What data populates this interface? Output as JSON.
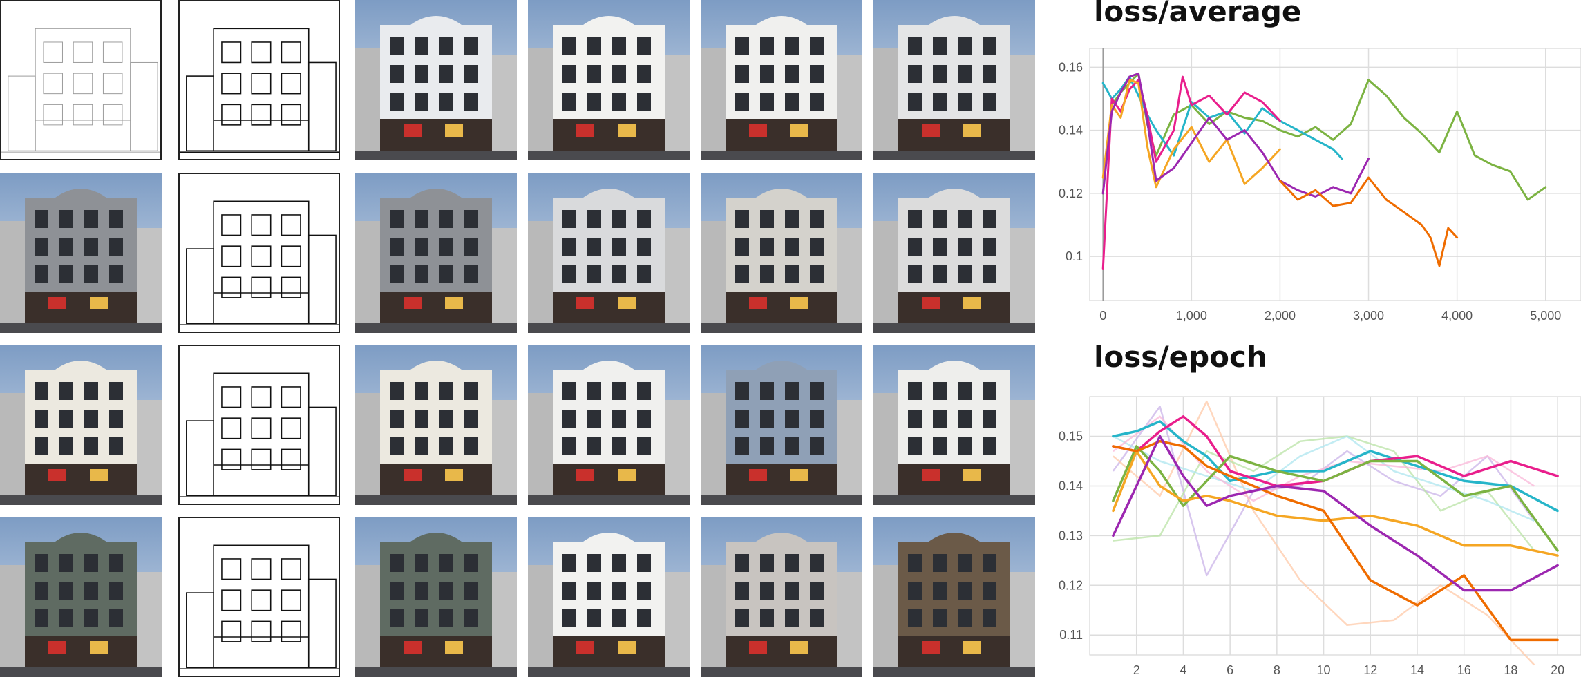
{
  "grid": {
    "rows": [
      {
        "sketch_style": "architectural"
      },
      {
        "sketch_style": "freehand"
      },
      {
        "sketch_style": "freehand"
      },
      {
        "sketch_style": "freehand"
      }
    ],
    "photo_palettes": [
      [
        "#e9ebee",
        "#f2f2f0",
        "#f0f0ee",
        "#e4e5e6"
      ],
      [
        "#8e9196",
        "#d9dadc",
        "#d4d2cc",
        "#dcdcdc"
      ],
      [
        "#ece9e0",
        "#f0f0ee",
        "#8fa0b6",
        "#eeeeec"
      ],
      [
        "#5f6b62",
        "#f2f2f0",
        "#c8c4c0",
        "#6b5a48"
      ]
    ]
  },
  "chart_data": [
    {
      "type": "line",
      "title": "loss/average",
      "xlim": [
        -150,
        5400
      ],
      "ylim": [
        0.086,
        0.166
      ],
      "x_ticks": [
        0,
        1000,
        2000,
        3000,
        4000,
        5000
      ],
      "x_tick_labels": [
        "0",
        "1,000",
        "2,000",
        "3,000",
        "4,000",
        "5,000"
      ],
      "y_ticks": [
        0.1,
        0.12,
        0.14,
        0.16
      ],
      "y_tick_labels": [
        "0.1",
        "0.12",
        "0.14",
        "0.16"
      ],
      "grid": true,
      "series": [
        {
          "color": "#7cb342",
          "x": [
            0,
            100,
            200,
            300,
            400,
            500,
            600,
            800,
            1000,
            1200,
            1400,
            1600,
            1800,
            2000,
            2200,
            2400,
            2600,
            2800,
            3000,
            3200,
            3400,
            3600,
            3800,
            4000,
            4200,
            4400,
            4600,
            4800,
            5000
          ],
          "y": [
            0.12,
            0.148,
            0.152,
            0.155,
            0.158,
            0.142,
            0.132,
            0.145,
            0.148,
            0.142,
            0.146,
            0.144,
            0.143,
            0.14,
            0.138,
            0.141,
            0.137,
            0.142,
            0.156,
            0.151,
            0.144,
            0.139,
            0.133,
            0.146,
            0.132,
            0.129,
            0.127,
            0.118,
            0.122
          ]
        },
        {
          "color": "#26b5c9",
          "x": [
            0,
            100,
            200,
            300,
            400,
            500,
            600,
            800,
            1000,
            1200,
            1400,
            1600,
            1800,
            2000,
            2200,
            2400,
            2600,
            2700
          ],
          "y": [
            0.155,
            0.15,
            0.153,
            0.157,
            0.151,
            0.145,
            0.14,
            0.132,
            0.149,
            0.144,
            0.146,
            0.139,
            0.147,
            0.143,
            0.14,
            0.137,
            0.134,
            0.131
          ]
        },
        {
          "color": "#e91e8c",
          "x": [
            0,
            100,
            200,
            300,
            400,
            500,
            600,
            800,
            900,
            1000,
            1200,
            1400,
            1600,
            1800,
            2000
          ],
          "y": [
            0.096,
            0.15,
            0.146,
            0.153,
            0.156,
            0.145,
            0.13,
            0.14,
            0.157,
            0.148,
            0.151,
            0.145,
            0.152,
            0.149,
            0.143
          ]
        },
        {
          "color": "#f5a623",
          "x": [
            0,
            100,
            200,
            300,
            400,
            500,
            600,
            800,
            1000,
            1200,
            1400,
            1600,
            1800,
            2000
          ],
          "y": [
            0.125,
            0.148,
            0.144,
            0.156,
            0.155,
            0.135,
            0.122,
            0.134,
            0.141,
            0.13,
            0.137,
            0.123,
            0.128,
            0.134
          ]
        },
        {
          "color": "#9c27b0",
          "x": [
            0,
            100,
            200,
            300,
            400,
            500,
            600,
            800,
            1000,
            1200,
            1400,
            1600,
            1800,
            2000,
            2200,
            2400,
            2600,
            2800,
            3000
          ],
          "y": [
            0.12,
            0.146,
            0.152,
            0.157,
            0.158,
            0.143,
            0.124,
            0.128,
            0.136,
            0.144,
            0.137,
            0.14,
            0.133,
            0.124,
            0.121,
            0.119,
            0.122,
            0.12,
            0.131
          ]
        },
        {
          "color": "#ef6c00",
          "x": [
            2000,
            2200,
            2400,
            2600,
            2800,
            3000,
            3200,
            3400,
            3600,
            3700,
            3800,
            3900,
            4000
          ],
          "y": [
            0.124,
            0.118,
            0.121,
            0.116,
            0.117,
            0.125,
            0.118,
            0.114,
            0.11,
            0.106,
            0.097,
            0.109,
            0.106
          ]
        }
      ]
    },
    {
      "type": "line",
      "title": "loss/epoch",
      "xlim": [
        0,
        21
      ],
      "ylim": [
        0.106,
        0.158
      ],
      "x_ticks": [
        2,
        4,
        6,
        8,
        10,
        12,
        14,
        16,
        18,
        20
      ],
      "x_tick_labels": [
        "2",
        "4",
        "6",
        "8",
        "10",
        "12",
        "14",
        "16",
        "18",
        "20"
      ],
      "y_ticks": [
        0.11,
        0.12,
        0.13,
        0.14,
        0.15
      ],
      "y_tick_labels": [
        "0.11",
        "0.12",
        "0.13",
        "0.14",
        "0.15"
      ],
      "grid": true,
      "series": [
        {
          "color": "#26b5c9",
          "x": [
            1,
            2,
            3,
            4,
            5,
            6,
            8,
            10,
            12,
            14,
            16,
            18,
            20
          ],
          "y": [
            0.15,
            0.151,
            0.153,
            0.149,
            0.146,
            0.141,
            0.143,
            0.143,
            0.147,
            0.144,
            0.141,
            0.14,
            0.135
          ]
        },
        {
          "color": "#e91e8c",
          "x": [
            1,
            2,
            3,
            4,
            5,
            6,
            8,
            10,
            12,
            14,
            16,
            18,
            20
          ],
          "y": [
            0.148,
            0.147,
            0.151,
            0.154,
            0.15,
            0.143,
            0.14,
            0.141,
            0.145,
            0.146,
            0.142,
            0.145,
            0.142
          ]
        },
        {
          "color": "#7cb342",
          "x": [
            1,
            2,
            3,
            4,
            5,
            6,
            8,
            10,
            12,
            14,
            16,
            18,
            20
          ],
          "y": [
            0.137,
            0.148,
            0.143,
            0.136,
            0.141,
            0.146,
            0.143,
            0.141,
            0.145,
            0.145,
            0.138,
            0.14,
            0.127
          ]
        },
        {
          "color": "#f5a623",
          "x": [
            1,
            2,
            3,
            4,
            5,
            6,
            8,
            10,
            12,
            14,
            16,
            18,
            20
          ],
          "y": [
            0.135,
            0.147,
            0.14,
            0.137,
            0.138,
            0.137,
            0.134,
            0.133,
            0.134,
            0.132,
            0.128,
            0.128,
            0.126
          ]
        },
        {
          "color": "#ef6c00",
          "x": [
            1,
            2,
            3,
            4,
            5,
            6,
            8,
            10,
            12,
            14,
            16,
            18,
            20
          ],
          "y": [
            0.148,
            0.147,
            0.149,
            0.148,
            0.144,
            0.142,
            0.138,
            0.135,
            0.121,
            0.116,
            0.122,
            0.109,
            0.109
          ]
        },
        {
          "color": "#9c27b0",
          "x": [
            1,
            2,
            3,
            4,
            5,
            6,
            8,
            10,
            12,
            14,
            16,
            18,
            20
          ],
          "y": [
            0.13,
            0.14,
            0.15,
            0.142,
            0.136,
            0.138,
            0.14,
            0.139,
            0.132,
            0.126,
            0.119,
            0.119,
            0.124
          ]
        }
      ],
      "faded_series": [
        {
          "color": "#c9b3e8",
          "x": [
            1,
            3,
            5,
            7,
            9,
            11,
            13,
            15,
            17,
            19
          ],
          "y": [
            0.143,
            0.156,
            0.122,
            0.139,
            0.14,
            0.147,
            0.141,
            0.138,
            0.146,
            0.133
          ]
        },
        {
          "color": "#ffc9a8",
          "x": [
            1,
            3,
            5,
            7,
            9,
            11,
            13,
            15,
            17,
            19
          ],
          "y": [
            0.146,
            0.138,
            0.157,
            0.135,
            0.121,
            0.112,
            0.113,
            0.12,
            0.114,
            0.104
          ]
        },
        {
          "color": "#b9e3a5",
          "x": [
            1,
            3,
            5,
            7,
            9,
            11,
            13,
            15,
            17,
            19
          ],
          "y": [
            0.129,
            0.13,
            0.147,
            0.143,
            0.149,
            0.15,
            0.147,
            0.135,
            0.139,
            0.127
          ]
        },
        {
          "color": "#aee6ef",
          "x": [
            1,
            3,
            5,
            7,
            9,
            11,
            13,
            15,
            17,
            19
          ],
          "y": [
            0.15,
            0.145,
            0.142,
            0.139,
            0.146,
            0.15,
            0.143,
            0.14,
            0.137,
            0.133
          ]
        },
        {
          "color": "#f9b7d8",
          "x": [
            1,
            3,
            5,
            7,
            9,
            11,
            13,
            15,
            17,
            19
          ],
          "y": [
            0.147,
            0.154,
            0.143,
            0.137,
            0.142,
            0.145,
            0.144,
            0.143,
            0.146,
            0.14
          ]
        }
      ]
    }
  ]
}
